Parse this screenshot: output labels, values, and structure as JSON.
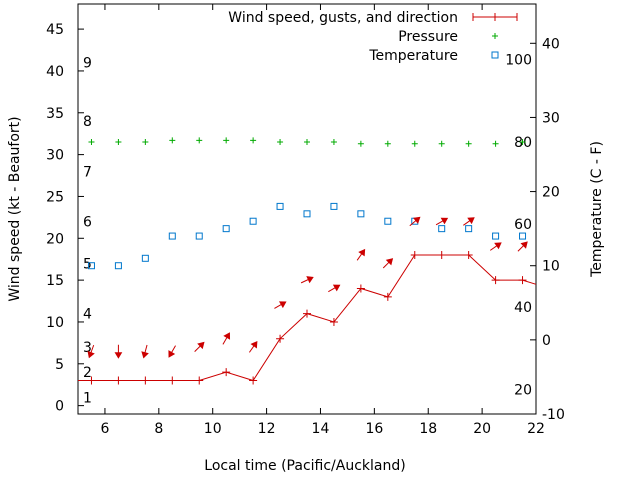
{
  "chart_data": {
    "type": "line",
    "xlabel": "Local time (Pacific/Auckland)",
    "ylabel": "Wind speed (kt - Beaufort)",
    "y2label": "Temperature (C - F)",
    "xlim": [
      5,
      22
    ],
    "ylim": [
      -1,
      48
    ],
    "y2lim": [
      -10.0,
      45.3
    ],
    "x_ticks": [
      6,
      8,
      10,
      12,
      14,
      16,
      18,
      20,
      22
    ],
    "y_ticks": [
      0,
      5,
      10,
      15,
      20,
      25,
      30,
      35,
      40,
      45
    ],
    "y2_ticks": [
      -10,
      0,
      10,
      20,
      30,
      40
    ],
    "fahrenheit_labels": [
      {
        "label": "20",
        "celsius": -6.7
      },
      {
        "label": "40",
        "celsius": 4.4
      },
      {
        "label": "60",
        "celsius": 15.6
      },
      {
        "label": "80",
        "celsius": 26.7
      },
      {
        "label": "100",
        "celsius": 37.8
      }
    ],
    "beaufort_labels": [
      {
        "label": "1",
        "kt": 1
      },
      {
        "label": "2",
        "kt": 4
      },
      {
        "label": "3",
        "kt": 7
      },
      {
        "label": "4",
        "kt": 11
      },
      {
        "label": "5",
        "kt": 17
      },
      {
        "label": "6",
        "kt": 22
      },
      {
        "label": "7",
        "kt": 28
      },
      {
        "label": "8",
        "kt": 34
      },
      {
        "label": "9",
        "kt": 41
      }
    ],
    "grid": false,
    "legend_position": "top-right",
    "series": [
      {
        "name": "Wind speed, gusts, and direction",
        "color": "#cc0000",
        "x": [
          5,
          5.5,
          6.5,
          7.5,
          8.5,
          9.5,
          10.5,
          11.5,
          12.5,
          13.5,
          14.5,
          15.5,
          16.5,
          17.5,
          18.5,
          19.5,
          20.5,
          21.5,
          22
        ],
        "values": [
          3,
          3,
          3,
          3,
          3,
          3,
          4,
          3,
          8,
          11,
          10,
          14,
          13,
          18,
          18,
          18,
          15,
          15,
          14.5
        ]
      },
      {
        "name": "Pressure",
        "color": "#00aa00",
        "x": [
          5.5,
          6.5,
          7.5,
          8.5,
          9.5,
          10.5,
          11.5,
          12.5,
          13.5,
          14.5,
          15.5,
          16.5,
          17.5,
          18.5,
          19.5,
          20.5,
          21.5
        ],
        "values": [
          31.5,
          31.5,
          31.5,
          31.7,
          31.7,
          31.7,
          31.7,
          31.5,
          31.5,
          31.5,
          31.3,
          31.3,
          31.3,
          31.3,
          31.3,
          31.3,
          31.5
        ]
      },
      {
        "name": "Temperature",
        "color": "#0077cc",
        "x": [
          5.5,
          6.5,
          7.5,
          8.5,
          9.5,
          10.5,
          11.5,
          12.5,
          13.5,
          14.5,
          15.5,
          16.5,
          17.5,
          18.5,
          19.5,
          20.5,
          21.5
        ],
        "values": [
          10.0,
          10.0,
          11.0,
          14.0,
          14.0,
          15.0,
          16.0,
          18.0,
          17.0,
          18.0,
          17.0,
          16.0,
          16.0,
          15.0,
          15.0,
          14.0,
          14.0
        ]
      }
    ],
    "wind_direction": {
      "color": "#cc0000",
      "points": [
        {
          "x": 5.5,
          "speed": 6.5,
          "dir_deg": 20
        },
        {
          "x": 6.5,
          "speed": 6.5,
          "dir_deg": 0
        },
        {
          "x": 7.5,
          "speed": 6.5,
          "dir_deg": 15
        },
        {
          "x": 8.5,
          "speed": 6.5,
          "dir_deg": 30
        },
        {
          "x": 9.5,
          "speed": 7,
          "dir_deg": 225
        },
        {
          "x": 10.5,
          "speed": 8,
          "dir_deg": 210
        },
        {
          "x": 11.5,
          "speed": 7,
          "dir_deg": 215
        },
        {
          "x": 12.5,
          "speed": 12,
          "dir_deg": 240
        },
        {
          "x": 13.5,
          "speed": 15,
          "dir_deg": 245
        },
        {
          "x": 14.5,
          "speed": 14,
          "dir_deg": 240
        },
        {
          "x": 15.5,
          "speed": 18,
          "dir_deg": 215
        },
        {
          "x": 16.5,
          "speed": 17,
          "dir_deg": 225
        },
        {
          "x": 17.5,
          "speed": 22,
          "dir_deg": 230
        },
        {
          "x": 18.5,
          "speed": 22,
          "dir_deg": 240
        },
        {
          "x": 19.5,
          "speed": 22,
          "dir_deg": 235
        },
        {
          "x": 20.5,
          "speed": 19,
          "dir_deg": 235
        },
        {
          "x": 21.5,
          "speed": 19,
          "dir_deg": 225
        }
      ]
    }
  }
}
